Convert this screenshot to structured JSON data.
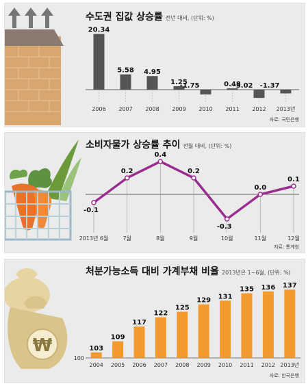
{
  "chart_data": [
    {
      "type": "bar",
      "title": "수도권 집값 상승률",
      "subtitle": "전년 대비, (단위: %)",
      "source": "자료: 국민은행",
      "categories": [
        "2006",
        "2007",
        "2008",
        "2009",
        "2010",
        "2011",
        "2012",
        "2013년"
      ],
      "values": [
        20.34,
        5.58,
        4.95,
        1.25,
        -1.75,
        0.48,
        -3.02,
        -1.37
      ],
      "value_labels": [
        "20.34",
        "5.58",
        "4.95",
        "1.25",
        "-1.75",
        "0.48",
        "-3.02",
        "-1.37"
      ],
      "ylim": [
        -4,
        21
      ],
      "color": "#555555"
    },
    {
      "type": "line",
      "title": "소비자물가 상승률 추이",
      "subtitle": "전월 대비, (단위: %)",
      "source": "자료: 통계청",
      "categories": [
        "2013년 6월",
        "7월",
        "8월",
        "9월",
        "10월",
        "11월",
        "12월"
      ],
      "values": [
        -0.1,
        0.2,
        0.4,
        0.2,
        -0.3,
        0.0,
        0.1
      ],
      "value_labels": [
        "-0.1",
        "0.2",
        "0.4",
        "0.2",
        "-0.3",
        "0.0",
        "0.1"
      ],
      "ylim": [
        -0.4,
        0.5
      ],
      "color": "#9b2c8f"
    },
    {
      "type": "bar",
      "title": "처분가능소득 대비 가계부채 비율",
      "subtitle": "2013년은 1~6월, (단위: %)",
      "source": "자료: 한국은행",
      "categories": [
        "2004",
        "2005",
        "2006",
        "2007",
        "2008",
        "2009",
        "2010",
        "2011",
        "2012",
        "2013년"
      ],
      "values": [
        103,
        109,
        117,
        122,
        125,
        129,
        131,
        135,
        136,
        137
      ],
      "baseline_label": "100",
      "ylim": [
        100,
        140
      ],
      "color": "#f39a2f"
    }
  ]
}
